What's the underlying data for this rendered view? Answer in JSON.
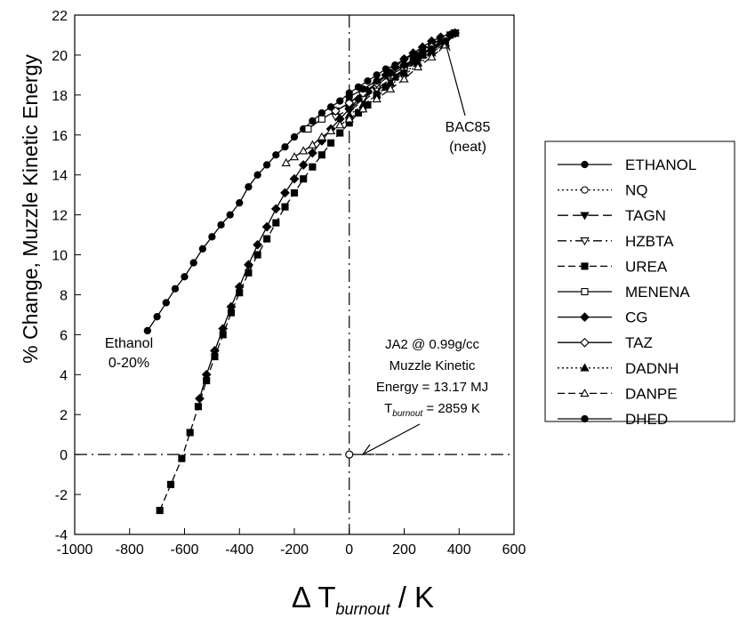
{
  "chart_data": {
    "type": "line",
    "title": "",
    "xlabel": "Δ T burnout / K",
    "xlabel_main": "Δ T",
    "xlabel_sub": "burnout",
    "xlabel_tail": " / K",
    "ylabel": "% Change, Muzzle Kinetic Energy",
    "xlim": [
      -1000,
      600
    ],
    "ylim": [
      -4,
      22
    ],
    "xticks": [
      -1000,
      -800,
      -600,
      -400,
      -200,
      0,
      200,
      400,
      600
    ],
    "yticks": [
      -4,
      -2,
      0,
      2,
      4,
      6,
      8,
      10,
      12,
      14,
      16,
      18,
      20,
      22
    ],
    "grid": false,
    "legend_position": "right",
    "reference_lines": {
      "x": 0,
      "y": 0
    },
    "reference_point": {
      "x": 0,
      "y": 0
    },
    "series": [
      {
        "name": "ETHANOL",
        "line": "solid",
        "marker": "circle-filled",
        "x": [
          -735,
          -700,
          -667,
          -634,
          -600,
          -567,
          -534,
          -500,
          -467,
          -434,
          -400,
          -367,
          -334,
          -300,
          -267,
          -234,
          -200,
          -167,
          -134,
          -100,
          -67,
          -34,
          0,
          33,
          67,
          100,
          133,
          167,
          200,
          233,
          267,
          300,
          333,
          367,
          385
        ],
        "y": [
          6.2,
          6.9,
          7.6,
          8.3,
          8.9,
          9.6,
          10.3,
          10.9,
          11.5,
          12.0,
          12.6,
          13.4,
          14.0,
          14.5,
          15.0,
          15.4,
          15.9,
          16.3,
          16.7,
          17.1,
          17.4,
          17.7,
          18.1,
          18.4,
          18.7,
          19.0,
          19.3,
          19.5,
          19.8,
          20.0,
          20.3,
          20.5,
          20.8,
          21.0,
          21.1
        ]
      },
      {
        "name": "NQ",
        "line": "dotted",
        "marker": "circle-open",
        "x": [
          0,
          50,
          100,
          150,
          200,
          250,
          300,
          350,
          385
        ],
        "y": [
          16.8,
          17.3,
          17.9,
          18.5,
          19.0,
          19.5,
          20.1,
          20.6,
          21.1
        ]
      },
      {
        "name": "TAGN",
        "line": "longdash",
        "marker": "triangle-down-filled",
        "x": [
          0,
          50,
          100,
          150,
          200,
          250,
          300,
          350,
          385
        ],
        "y": [
          17.2,
          17.7,
          18.2,
          18.7,
          19.2,
          19.7,
          20.2,
          20.7,
          21.1
        ]
      },
      {
        "name": "HZBTA",
        "line": "dashdot",
        "marker": "triangle-down-open",
        "x": [
          -50,
          0,
          50,
          100,
          150,
          200,
          250,
          300,
          350,
          385
        ],
        "y": [
          16.9,
          17.3,
          17.8,
          18.3,
          18.8,
          19.3,
          19.7,
          20.2,
          20.7,
          21.1
        ]
      },
      {
        "name": "UREA",
        "line": "dash",
        "marker": "square-filled",
        "x": [
          -690,
          -650,
          -610,
          -580,
          -550,
          -520,
          -490,
          -460,
          -430,
          -400,
          -367,
          -334,
          -300,
          -267,
          -234,
          -200,
          -167,
          -134,
          -100,
          -67,
          -34,
          0,
          33,
          67,
          100,
          133,
          167,
          200,
          233,
          267,
          300,
          333,
          367,
          385
        ],
        "y": [
          -2.8,
          -1.5,
          -0.2,
          1.1,
          2.4,
          3.7,
          4.9,
          6.0,
          7.1,
          8.1,
          9.1,
          10.0,
          10.8,
          11.6,
          12.4,
          13.1,
          13.8,
          14.4,
          15.0,
          15.6,
          16.1,
          16.6,
          17.1,
          17.5,
          18.0,
          18.4,
          18.9,
          19.3,
          19.7,
          20.0,
          20.4,
          20.7,
          21.0,
          21.1
        ]
      },
      {
        "name": "MENENA",
        "line": "solid",
        "marker": "square-open",
        "x": [
          -150,
          -100,
          -50,
          0,
          50,
          100,
          150,
          200,
          250,
          300,
          350,
          385
        ],
        "y": [
          16.3,
          16.8,
          17.2,
          17.6,
          18.1,
          18.5,
          19.0,
          19.4,
          19.9,
          20.3,
          20.8,
          21.1
        ]
      },
      {
        "name": "CG",
        "line": "solid",
        "marker": "diamond-filled",
        "x": [
          -545,
          -520,
          -490,
          -460,
          -430,
          -400,
          -367,
          -334,
          -300,
          -267,
          -234,
          -200,
          -167,
          -134,
          -100,
          -67,
          -34,
          0,
          33,
          67,
          100,
          133,
          167,
          200,
          233,
          267,
          300,
          333,
          367,
          385
        ],
        "y": [
          2.8,
          4.0,
          5.2,
          6.3,
          7.4,
          8.4,
          9.5,
          10.5,
          11.4,
          12.3,
          13.1,
          13.8,
          14.5,
          15.1,
          15.7,
          16.3,
          16.8,
          17.3,
          17.8,
          18.2,
          18.6,
          19.0,
          19.4,
          19.8,
          20.1,
          20.4,
          20.7,
          20.9,
          21.0,
          21.1
        ]
      },
      {
        "name": "TAZ",
        "line": "solid",
        "marker": "diamond-open",
        "x": [
          -50,
          0,
          50,
          100,
          150,
          200,
          250,
          300,
          350,
          385
        ],
        "y": [
          17.2,
          17.6,
          18.1,
          18.6,
          19.1,
          19.5,
          19.9,
          20.4,
          20.8,
          21.1
        ]
      },
      {
        "name": "DADNH",
        "line": "dotted",
        "marker": "triangle-up-filled",
        "x": [
          0,
          50,
          100,
          150,
          200,
          250,
          300,
          350,
          385
        ],
        "y": [
          17.0,
          17.5,
          18.0,
          18.6,
          19.1,
          19.6,
          20.1,
          20.6,
          21.1
        ]
      },
      {
        "name": "DANPE",
        "line": "dash",
        "marker": "triangle-up-open",
        "x": [
          -230,
          -200,
          -167,
          -134,
          -100,
          -67,
          -34,
          0,
          50,
          100,
          150,
          200,
          250,
          300,
          350,
          385
        ],
        "y": [
          14.6,
          14.9,
          15.2,
          15.5,
          15.9,
          16.2,
          16.5,
          16.8,
          17.3,
          17.8,
          18.3,
          18.8,
          19.4,
          19.9,
          20.5,
          21.1
        ]
      },
      {
        "name": "DHED",
        "line": "solid",
        "marker": "circle-filled",
        "x": [
          0,
          50,
          100,
          150,
          200,
          250,
          300,
          350,
          385
        ],
        "y": [
          17.9,
          18.3,
          18.7,
          19.1,
          19.5,
          19.9,
          20.3,
          20.7,
          21.1
        ]
      }
    ],
    "annotations": {
      "bac85": [
        "BAC85",
        "(neat)"
      ],
      "ethanol": [
        "Ethanol",
        "0-20%"
      ],
      "ref_lines": [
        "JA2 @ 0.99g/cc",
        "Muzzle Kinetic",
        "Energy = 13.17 MJ"
      ],
      "ref_t_main": "T",
      "ref_t_sub": "burnout",
      "ref_t_tail": " = 2859 K"
    }
  }
}
